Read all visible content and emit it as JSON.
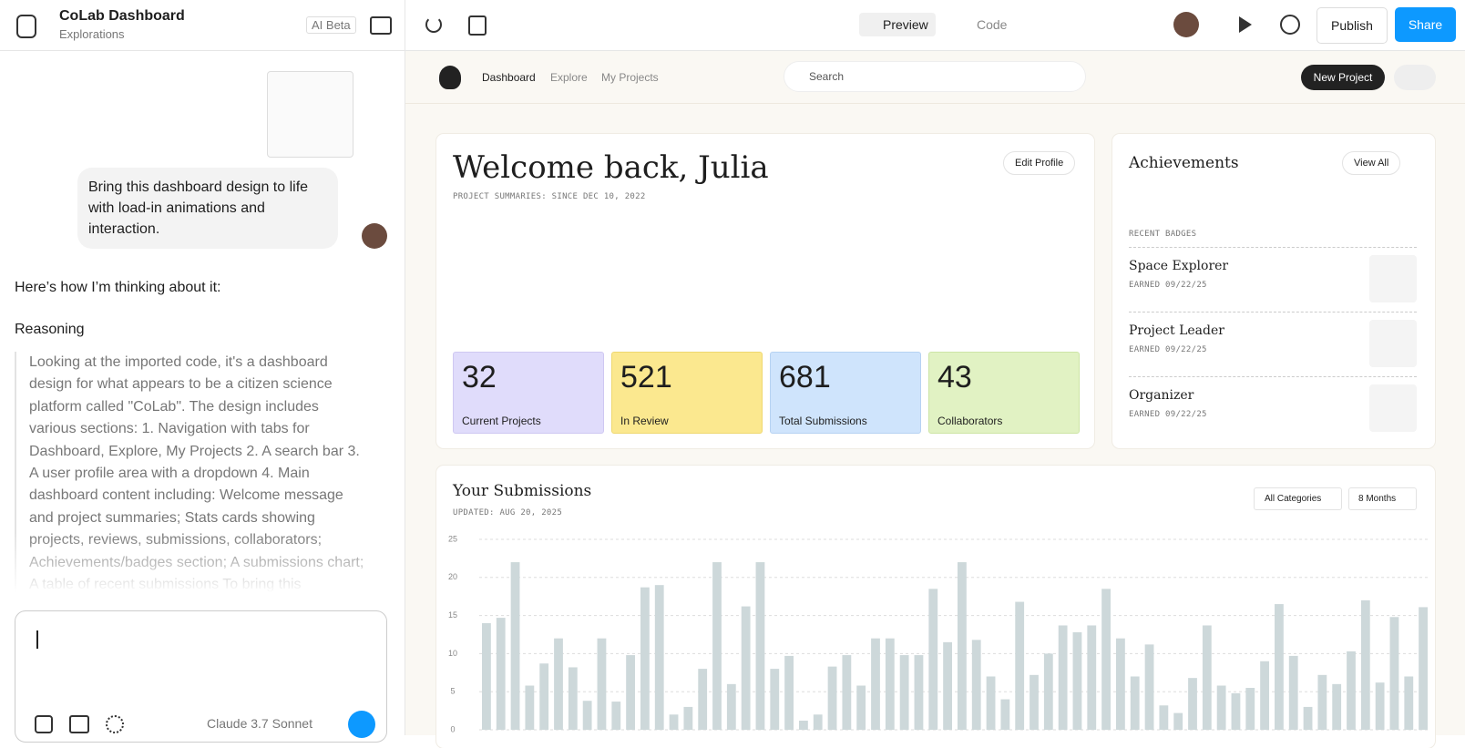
{
  "top_bar": {
    "file_title": "CoLab Dashboard",
    "file_subtitle": "Explorations",
    "ai_badge": "AI Beta",
    "tabs": [
      "Preview",
      "Code"
    ],
    "publish": "Publish",
    "share": "Share"
  },
  "chat": {
    "message": "Bring this dashboard design to life with load-in animations and interaction.",
    "intro": "Here’s how I’m thinking about it:",
    "reasoning_label": "Reasoning",
    "reasoning_text": "Looking at the imported code, it's a dashboard design for what appears to be a citizen science platform called \"CoLab\". The design includes various sections: 1. Navigation with tabs for Dashboard, Explore, My Projects 2. A search bar 3. A user profile area with a dropdown 4. Main dashboard content including: Welcome message and project summaries; Stats cards showing projects, reviews, submissions, collaborators; Achievements/badges section; A submissions chart; A table of recent submissions To bring this",
    "model": "Claude 3.7 Sonnet"
  },
  "dashboard": {
    "nav": [
      "Dashboard",
      "Explore",
      "My Projects"
    ],
    "search_placeholder": "Search",
    "new_project": "New Project",
    "welcome": "Welcome back, Julia",
    "welcome_subtitle": "PROJECT SUMMARIES: SINCE DEC 10, 2022",
    "edit_profile": "Edit Profile",
    "stats": [
      {
        "value": 32,
        "label": "Current Projects"
      },
      {
        "value": 521,
        "label": "In Review"
      },
      {
        "value": 681,
        "label": "Total Submissions"
      },
      {
        "value": 43,
        "label": "Collaborators"
      }
    ],
    "achievements": {
      "title": "Achievements",
      "view_all": "View All",
      "section_label": "RECENT BADGES",
      "badges": [
        {
          "name": "Space Explorer",
          "earned": "EARNED 09/22/25"
        },
        {
          "name": "Project Leader",
          "earned": "EARNED 09/22/25"
        },
        {
          "name": "Organizer",
          "earned": "EARNED 09/22/25"
        }
      ]
    },
    "filters": [
      "All Categories",
      "8 Months"
    ]
  },
  "chart_data": {
    "type": "bar",
    "title": "Your Submissions",
    "subtitle": "UPDATED: AUG 20, 2025",
    "color": "#cdd8da",
    "ylim": [
      0,
      25
    ],
    "yticks": [
      0,
      5,
      10,
      15,
      20,
      25
    ],
    "grid": true,
    "values": [
      14,
      14.7,
      22,
      5.8,
      8.7,
      12,
      8.2,
      3.8,
      12,
      3.7,
      9.8,
      18.7,
      19,
      2,
      3,
      8,
      22,
      6,
      16.2,
      22,
      8,
      9.7,
      1.2,
      2,
      8.3,
      9.8,
      5.8,
      12,
      12,
      9.8,
      9.8,
      18.5,
      11.5,
      22,
      11.8,
      7,
      4,
      16.8,
      7.2,
      10,
      13.7,
      12.8,
      13.7,
      18.5,
      12,
      7,
      11.2,
      3.2,
      2.2,
      6.8,
      13.7,
      5.8,
      4.8,
      5.5,
      9,
      16.5,
      9.7,
      3,
      7.2,
      6,
      10.3,
      17,
      6.2,
      14.8,
      7,
      16.1
    ]
  }
}
